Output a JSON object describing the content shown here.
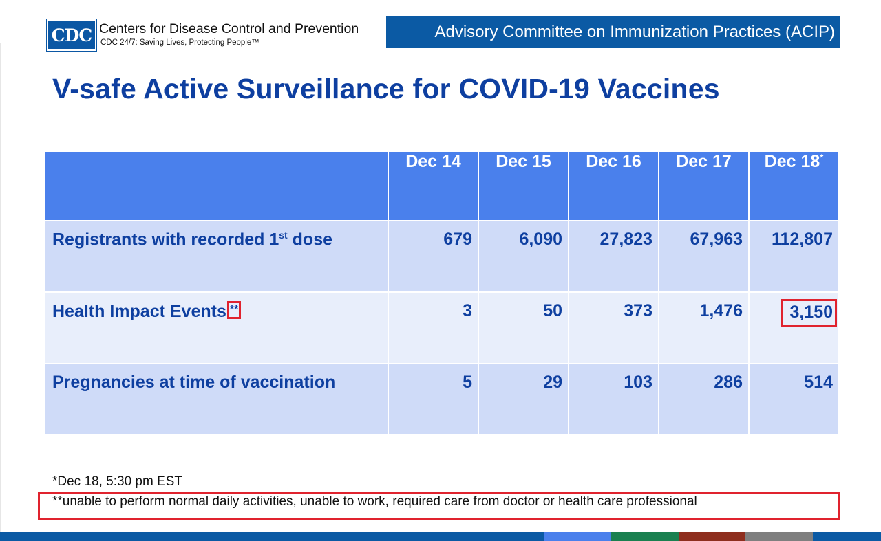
{
  "header": {
    "logo_text": "CDC",
    "org_name": "Centers for Disease Control and Prevention",
    "tagline": "CDC 24/7: Saving Lives, Protecting People™",
    "banner": "Advisory Committee on Immunization Practices (ACIP)"
  },
  "title": "V-safe Active Surveillance for COVID-19 Vaccines",
  "table": {
    "columns": [
      "Dec 14",
      "Dec 15",
      "Dec 16",
      "Dec 17",
      "Dec 18"
    ],
    "last_column_marker": "*",
    "rows": [
      {
        "label": "Registrants with recorded 1",
        "label_sup": "st",
        "label_tail": " dose",
        "values": [
          "679",
          "6,090",
          "27,823",
          "67,963",
          "112,807"
        ]
      },
      {
        "label": "Health Impact Events",
        "label_marker": "**",
        "values": [
          "3",
          "50",
          "373",
          "1,476",
          "3,150"
        ]
      },
      {
        "label": "Pregnancies at time of vaccination",
        "values": [
          "5",
          "29",
          "103",
          "286",
          "514"
        ]
      }
    ]
  },
  "footnotes": {
    "note1": "*Dec 18, 5:30 pm EST",
    "note2": "**unable to perform normal daily activities, unable to work, required care from doctor or health care professional"
  },
  "colors": {
    "brand_blue": "#0b5aa4",
    "title_blue": "#0e3fa0",
    "header_row": "#4a80ec",
    "row_odd": "#cfdbf8",
    "row_even": "#e8eefb",
    "highlight_red": "#e0232e",
    "bar_segments": [
      "#4a80ec",
      "#1a8050",
      "#8e2e1e",
      "#7f7f7f"
    ]
  }
}
